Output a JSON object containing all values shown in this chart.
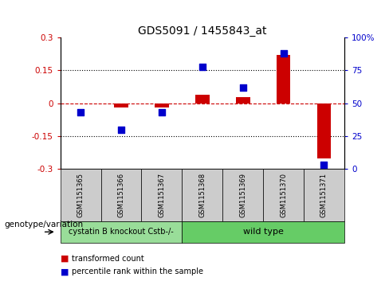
{
  "title": "GDS5091 / 1455843_at",
  "samples": [
    "GSM1151365",
    "GSM1151366",
    "GSM1151367",
    "GSM1151368",
    "GSM1151369",
    "GSM1151370",
    "GSM1151371"
  ],
  "transformed_count": [
    0.0,
    -0.02,
    -0.02,
    0.04,
    0.03,
    0.22,
    -0.25
  ],
  "percentile_rank": [
    43,
    30,
    43,
    78,
    62,
    88,
    3
  ],
  "ylim_left": [
    -0.3,
    0.3
  ],
  "ylim_right": [
    0,
    100
  ],
  "yticks_left": [
    -0.3,
    -0.15,
    0,
    0.15,
    0.3
  ],
  "yticks_right": [
    0,
    25,
    50,
    75,
    100
  ],
  "ytick_labels_left": [
    "-0.3",
    "-0.15",
    "0",
    "0.15",
    "0.3"
  ],
  "ytick_labels_right": [
    "0",
    "25",
    "50",
    "75",
    "100%"
  ],
  "hlines": [
    0.15,
    -0.15
  ],
  "zero_line_color": "#cc0000",
  "bar_color": "#cc0000",
  "scatter_color": "#0000cc",
  "group1_label": "cystatin B knockout Cstb-/-",
  "group2_label": "wild type",
  "group1_count": 3,
  "group2_count": 4,
  "group1_color": "#99dd99",
  "group2_color": "#66cc66",
  "genotype_label": "genotype/variation",
  "legend_red": "transformed count",
  "legend_blue": "percentile rank within the sample",
  "bar_width": 0.35,
  "scatter_size": 40,
  "box_color": "#cccccc",
  "title_fontsize": 10,
  "tick_fontsize": 7.5,
  "sample_fontsize": 6,
  "legend_fontsize": 7,
  "genotype_fontsize": 7.5,
  "group_fontsize": 7
}
